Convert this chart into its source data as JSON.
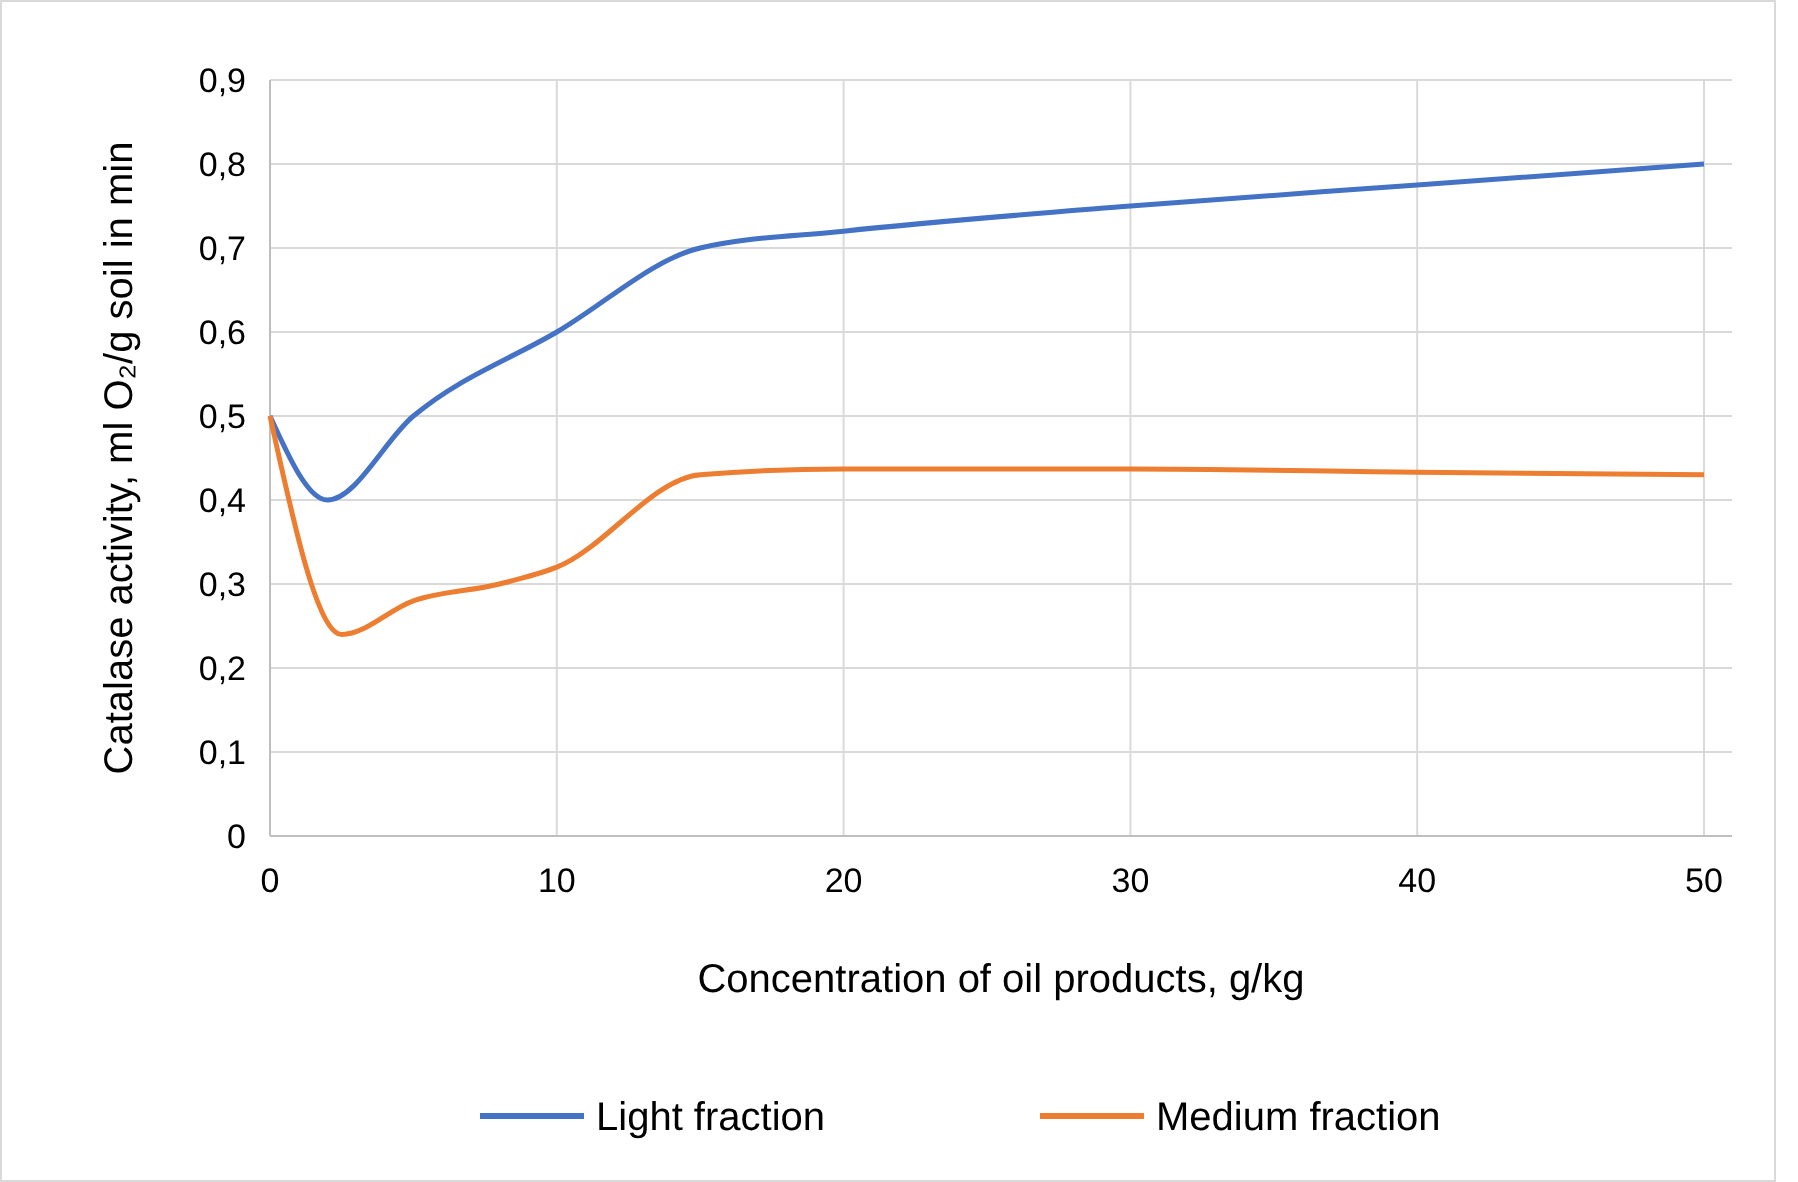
{
  "chart_data": {
    "type": "line",
    "xlabel": "Concentration of oil products, g/kg",
    "ylabel": "Catalase activity, ml O₂/g soil in min",
    "xlim": [
      0,
      50
    ],
    "xticks": [
      0,
      10,
      20,
      30,
      40,
      50
    ],
    "ylim": [
      0,
      0.9
    ],
    "yticks": [
      {
        "value": 0,
        "label": "0"
      },
      {
        "value": 0.1,
        "label": "0,1"
      },
      {
        "value": 0.2,
        "label": "0,2"
      },
      {
        "value": 0.3,
        "label": "0,3"
      },
      {
        "value": 0.4,
        "label": "0,4"
      },
      {
        "value": 0.5,
        "label": "0,5"
      },
      {
        "value": 0.6,
        "label": "0,6"
      },
      {
        "value": 0.7,
        "label": "0,7"
      },
      {
        "value": 0.8,
        "label": "0,8"
      },
      {
        "value": 0.9,
        "label": "0,9"
      }
    ],
    "grid": true,
    "legend": "bottom",
    "marker": "none",
    "line_style": "solid",
    "series": [
      {
        "name": "Light fraction",
        "color": "#4472c4",
        "x": [
          0,
          2,
          5,
          10,
          15,
          20,
          30,
          40,
          50
        ],
        "values": [
          0.5,
          0.4,
          0.5,
          0.6,
          0.7,
          0.72,
          0.75,
          0.775,
          0.8
        ]
      },
      {
        "name": "Medium fraction",
        "color": "#ed7d31",
        "x": [
          0,
          2.5,
          5,
          8,
          10,
          15,
          20,
          30,
          40,
          50
        ],
        "values": [
          0.5,
          0.24,
          0.28,
          0.3,
          0.32,
          0.43,
          0.437,
          0.437,
          0.433,
          0.43
        ]
      }
    ]
  }
}
